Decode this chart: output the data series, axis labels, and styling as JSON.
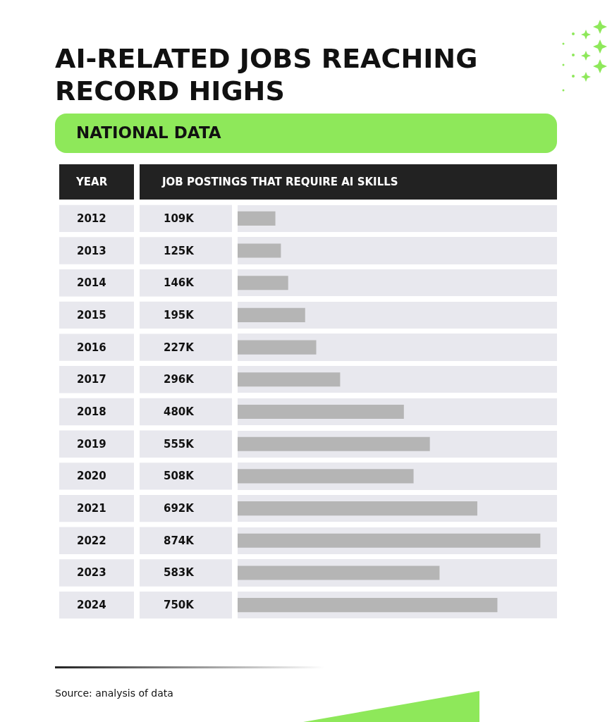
{
  "chart_data": {
    "type": "bar",
    "orientation": "horizontal",
    "title": "AI-RELATED JOBS REACHING RECORD HIGHS",
    "subtitle": "NATIONAL DATA",
    "ylabel": "YEAR",
    "xlabel": "JOB POSTINGS THAT REQUIRE AI SKILLS",
    "categories": [
      "2012",
      "2013",
      "2014",
      "2015",
      "2016",
      "2017",
      "2018",
      "2019",
      "2020",
      "2021",
      "2022",
      "2023",
      "2024"
    ],
    "values": [
      109,
      125,
      146,
      195,
      227,
      296,
      480,
      555,
      508,
      692,
      874,
      583,
      750
    ],
    "value_labels": [
      "109K",
      "125K",
      "146K",
      "195K",
      "227K",
      "296K",
      "480K",
      "555K",
      "508K",
      "692K",
      "874K",
      "583K",
      "750K"
    ],
    "color": "#b5b5b5",
    "grid": false,
    "legend": false,
    "annotations": [
      "Source: analysis of data"
    ]
  }
}
